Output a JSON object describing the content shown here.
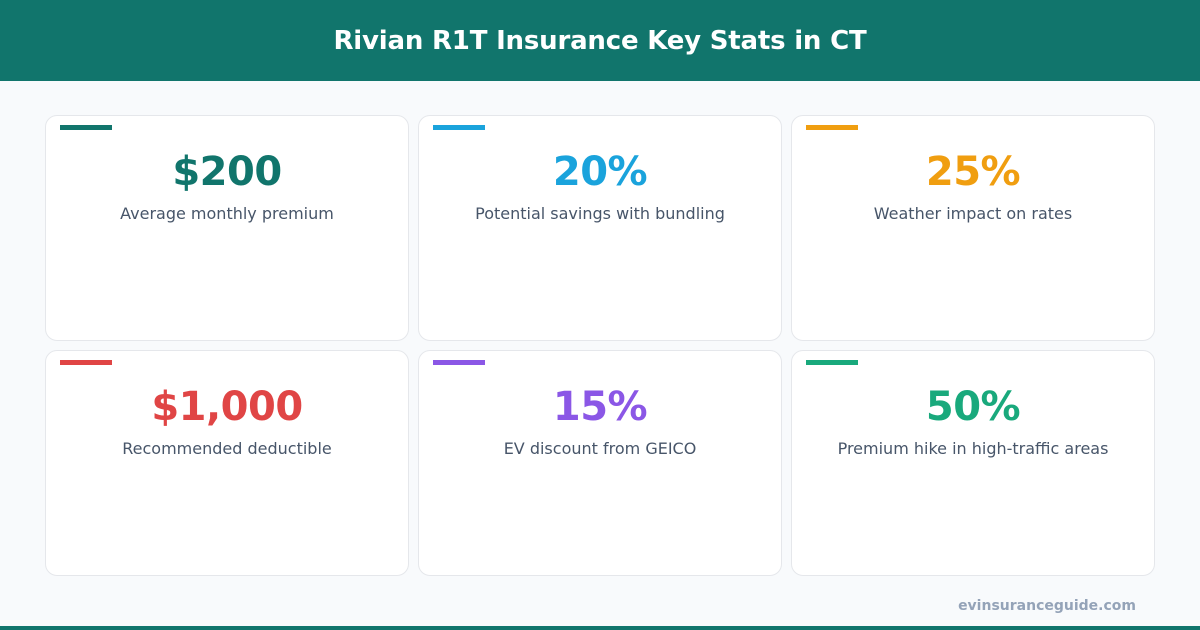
{
  "header": {
    "title": "Rivian R1T Insurance Key Stats in CT"
  },
  "stats": [
    {
      "value": "$200",
      "label": "Average monthly premium",
      "color": "#11756c"
    },
    {
      "value": "20%",
      "label": "Potential savings with bundling",
      "color": "#1aa3dc"
    },
    {
      "value": "25%",
      "label": "Weather impact on rates",
      "color": "#f09e10"
    },
    {
      "value": "$1,000",
      "label": "Recommended deductible",
      "color": "#e04545"
    },
    {
      "value": "15%",
      "label": "EV discount from GEICO",
      "color": "#8b57e6"
    },
    {
      "value": "50%",
      "label": "Premium hike in high-traffic areas",
      "color": "#19a97c"
    }
  ],
  "footer": {
    "site": "evinsuranceguide.com"
  },
  "colors": {
    "brand": "#11756c",
    "background": "#f8fafc"
  }
}
